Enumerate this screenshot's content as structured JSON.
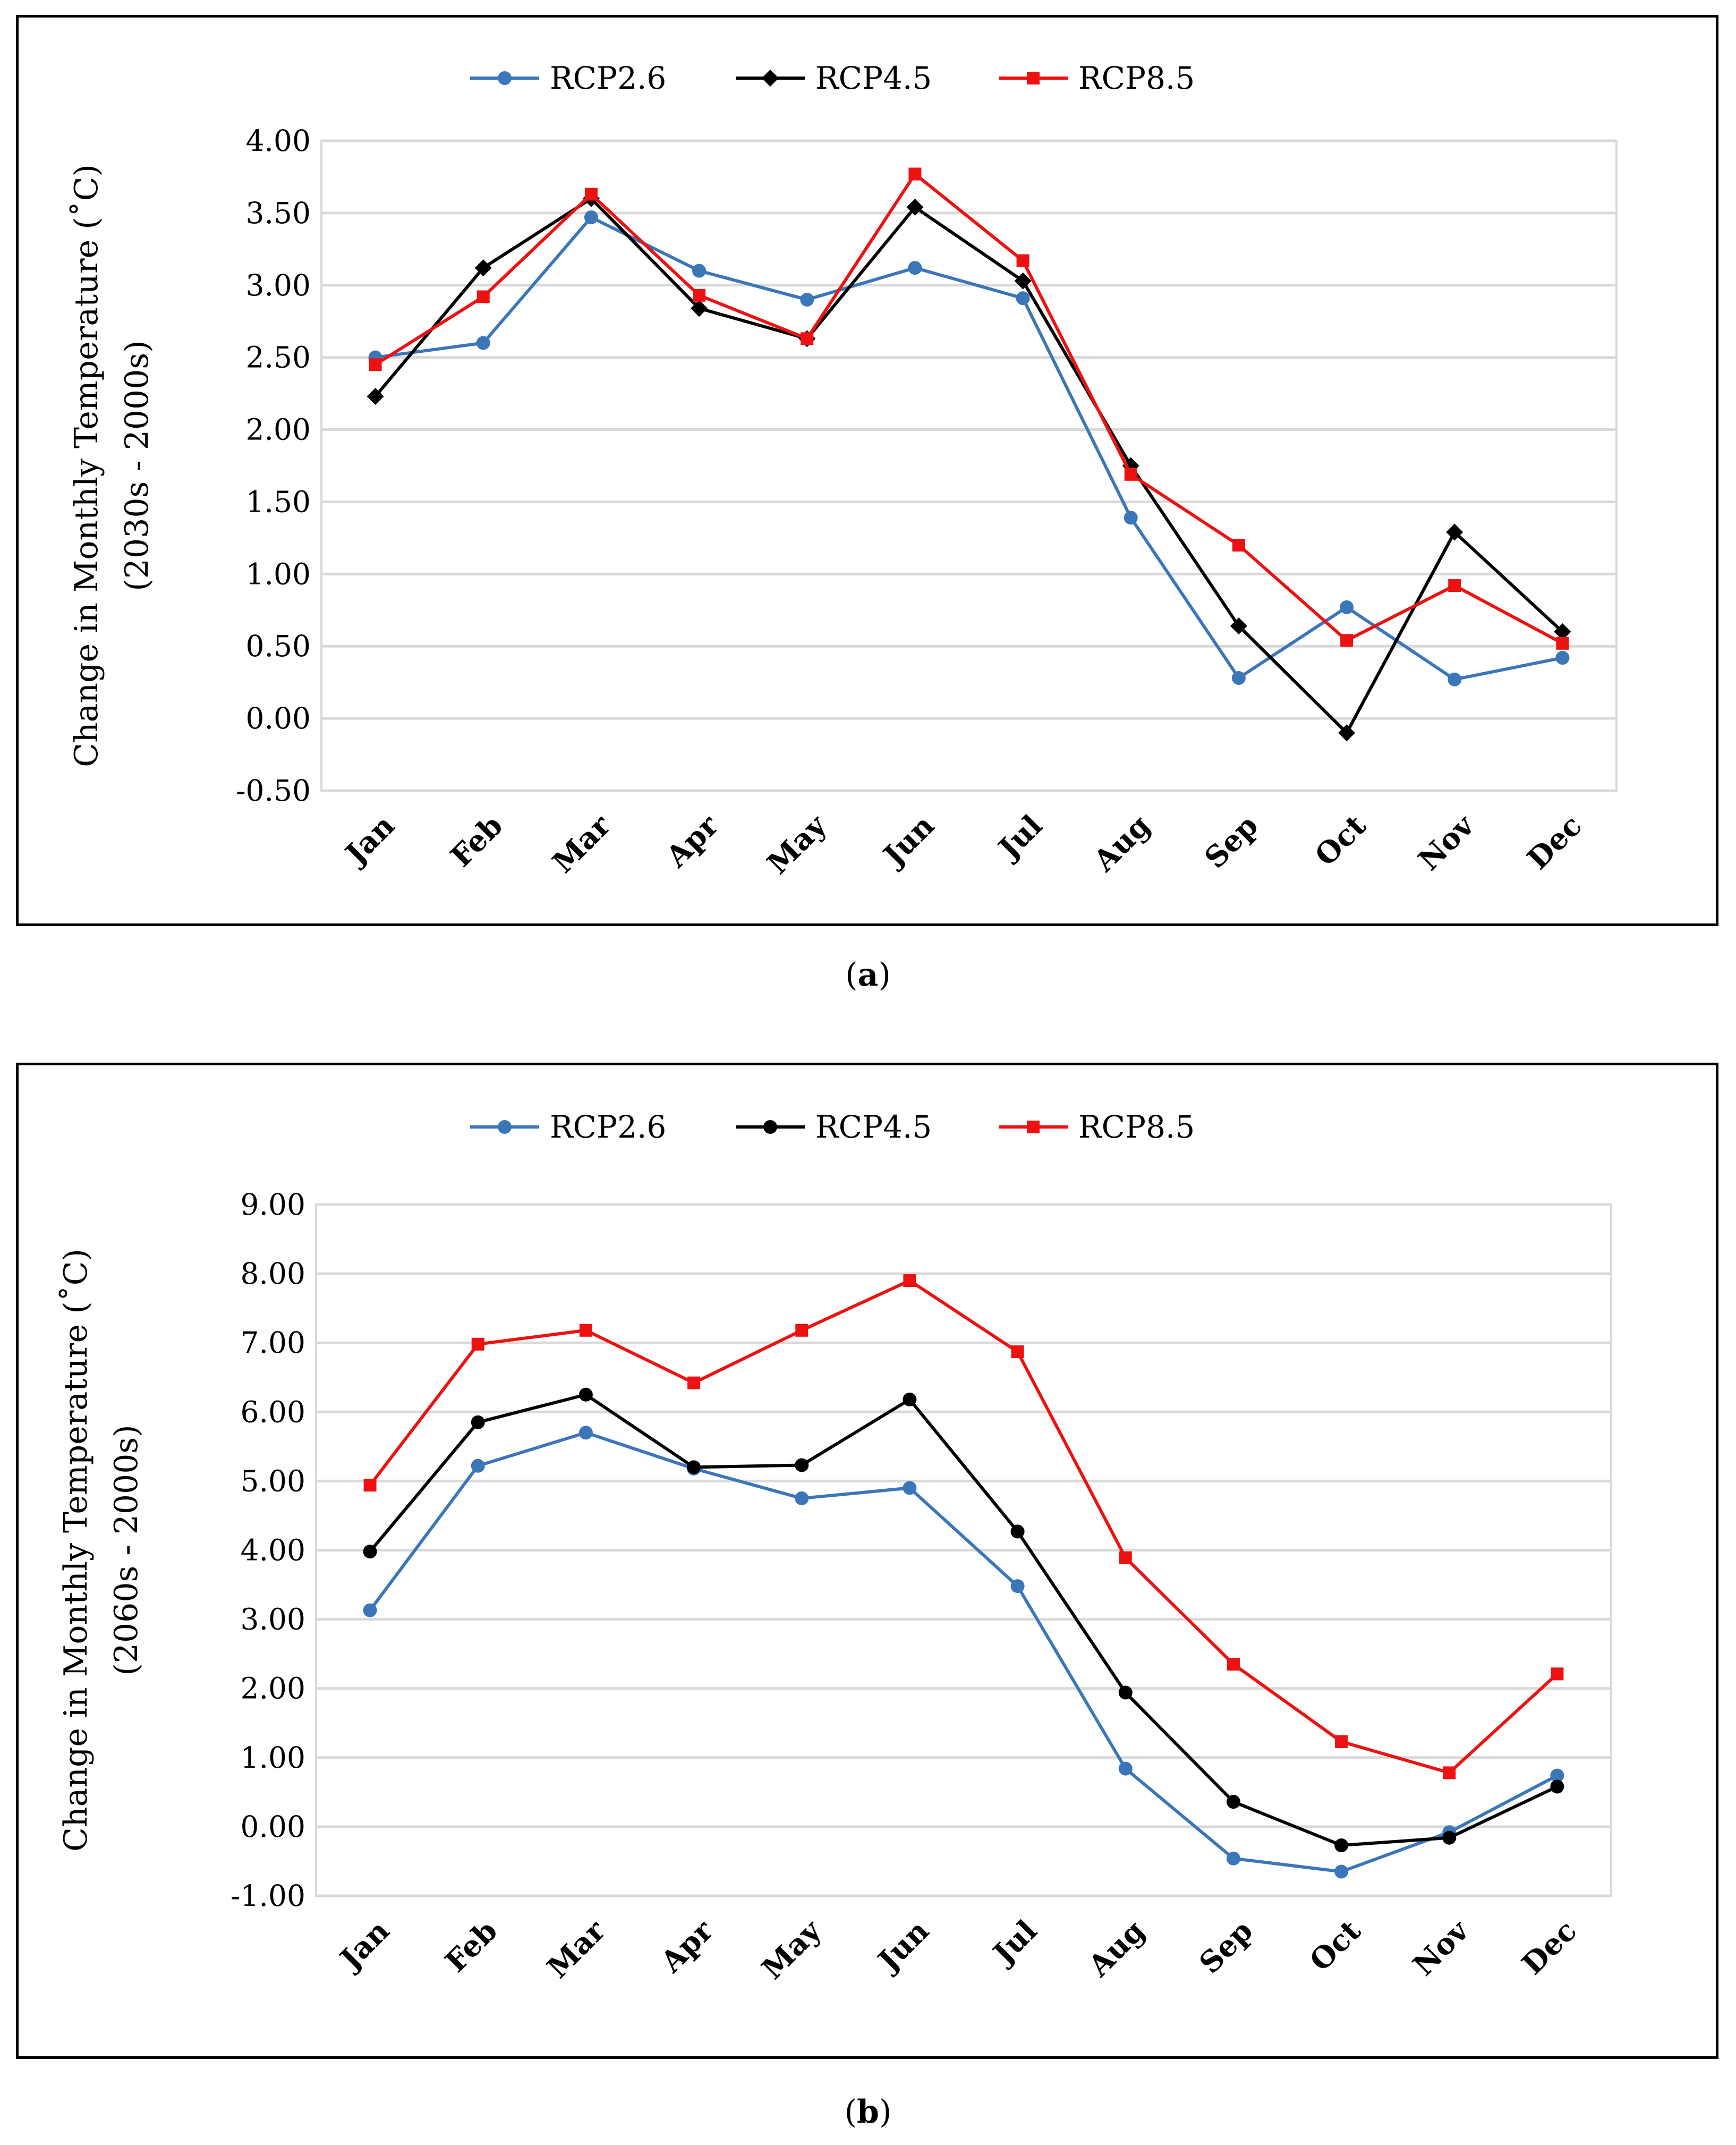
{
  "chart_data": [
    {
      "type": "line",
      "panel": "a",
      "caption": "a",
      "title": "",
      "xlabel": "",
      "ylabel": "Change  in Monthly Temperature  (˚C)",
      "ylabel2": "(2030s - 2000s)",
      "categories": [
        "Jan",
        "Feb",
        "Mar",
        "Apr",
        "May",
        "Jun",
        "Jul",
        "Aug",
        "Sep",
        "Oct",
        "Nov",
        "Dec"
      ],
      "ylim": [
        -0.5,
        4.0
      ],
      "ystep": 0.5,
      "yticks": [
        "-0.50",
        "0.00",
        "0.50",
        "1.00",
        "1.50",
        "2.00",
        "2.50",
        "3.00",
        "3.50",
        "4.00"
      ],
      "grid": true,
      "legend": "top-center",
      "series": [
        {
          "name": "RCP2.6",
          "color": "#3b76b8",
          "marker": "circle",
          "values": [
            2.5,
            2.6,
            3.47,
            3.1,
            2.9,
            3.12,
            2.91,
            1.39,
            0.28,
            0.77,
            0.27,
            0.42
          ]
        },
        {
          "name": "RCP4.5",
          "color": "#000000",
          "marker": "diamond",
          "values": [
            2.23,
            3.12,
            3.6,
            2.84,
            2.63,
            3.54,
            3.03,
            1.75,
            0.64,
            -0.1,
            1.29,
            0.6
          ]
        },
        {
          "name": "RCP8.5",
          "color": "#ee1111",
          "marker": "square",
          "values": [
            2.45,
            2.92,
            3.63,
            2.93,
            2.63,
            3.77,
            3.17,
            1.69,
            1.2,
            0.54,
            0.92,
            0.52
          ]
        }
      ]
    },
    {
      "type": "line",
      "panel": "b",
      "caption": "b",
      "title": "",
      "xlabel": "",
      "ylabel": "Change  in  Monthly Temperature  (˚C)",
      "ylabel2": "(2060s - 2000s)",
      "categories": [
        "Jan",
        "Feb",
        "Mar",
        "Apr",
        "May",
        "Jun",
        "Jul",
        "Aug",
        "Sep",
        "Oct",
        "Nov",
        "Dec"
      ],
      "ylim": [
        -1.0,
        9.0
      ],
      "ystep": 1.0,
      "yticks": [
        "-1.00",
        "0.00",
        "1.00",
        "2.00",
        "3.00",
        "4.00",
        "5.00",
        "6.00",
        "7.00",
        "8.00",
        "9.00"
      ],
      "grid": true,
      "legend": "top-center",
      "series": [
        {
          "name": "RCP2.6",
          "color": "#3b76b8",
          "marker": "circle",
          "values": [
            3.13,
            5.22,
            5.7,
            5.18,
            4.75,
            4.9,
            3.48,
            0.84,
            -0.46,
            -0.65,
            -0.08,
            0.74
          ]
        },
        {
          "name": "RCP4.5",
          "color": "#000000",
          "marker": "circle",
          "values": [
            3.98,
            5.85,
            6.25,
            5.2,
            5.23,
            6.18,
            4.27,
            1.94,
            0.36,
            -0.27,
            -0.16,
            0.58
          ]
        },
        {
          "name": "RCP8.5",
          "color": "#ee1111",
          "marker": "square",
          "values": [
            4.94,
            6.98,
            7.18,
            6.42,
            7.18,
            7.9,
            6.87,
            3.89,
            2.35,
            1.23,
            0.78,
            2.21
          ]
        }
      ]
    }
  ]
}
